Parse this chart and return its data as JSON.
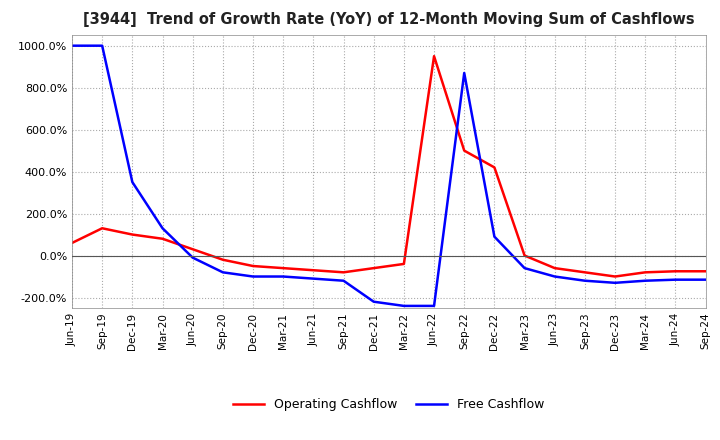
{
  "title": "[3944]  Trend of Growth Rate (YoY) of 12-Month Moving Sum of Cashflows",
  "ylim": [
    -250,
    1050
  ],
  "yticks": [
    -200,
    0,
    200,
    400,
    600,
    800,
    1000
  ],
  "background_color": "#ffffff",
  "grid_color": "#aaaaaa",
  "x_labels": [
    "Jun-19",
    "Sep-19",
    "Dec-19",
    "Mar-20",
    "Jun-20",
    "Sep-20",
    "Dec-20",
    "Mar-21",
    "Jun-21",
    "Sep-21",
    "Dec-21",
    "Mar-22",
    "Jun-22",
    "Sep-22",
    "Dec-22",
    "Mar-23",
    "Jun-23",
    "Sep-23",
    "Dec-23",
    "Mar-24",
    "Jun-24",
    "Sep-24"
  ],
  "operating_cashflow": [
    60,
    130,
    100,
    80,
    30,
    -20,
    -50,
    -60,
    -70,
    -80,
    -60,
    -40,
    950,
    500,
    420,
    0,
    -60,
    -80,
    -100,
    -80,
    -75,
    -75
  ],
  "free_cashflow": [
    1000,
    1000,
    350,
    130,
    -10,
    -80,
    -100,
    -100,
    -110,
    -120,
    -220,
    -240,
    -240,
    870,
    90,
    -60,
    -100,
    -120,
    -130,
    -120,
    -115,
    -115
  ],
  "operating_color": "#ff0000",
  "free_color": "#0000ff",
  "legend_labels": [
    "Operating Cashflow",
    "Free Cashflow"
  ]
}
